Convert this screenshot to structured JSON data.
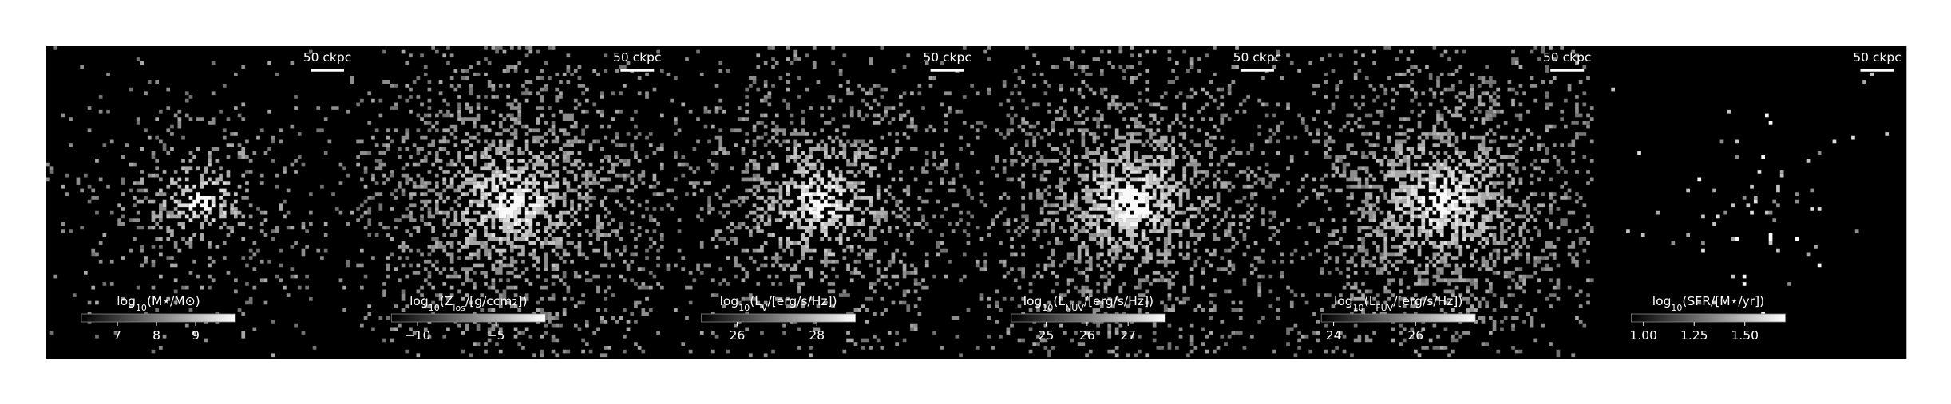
{
  "panels": [
    {
      "scale_label": "50 ckpc",
      "colorbar": {
        "label": [
          {
            "t": "log"
          },
          {
            "t": "10",
            "s": "sub"
          },
          {
            "t": "(M⋆/M⊙)"
          }
        ],
        "clim": [
          6.08,
          10.02
        ],
        "ticks": [
          7,
          8,
          9
        ]
      }
    },
    {
      "scale_label": "50 ckpc",
      "colorbar": {
        "label": [
          {
            "t": "log"
          },
          {
            "t": "10",
            "s": "sub"
          },
          {
            "t": "(Z"
          },
          {
            "t": "los",
            "s": "sub"
          },
          {
            "t": "/[g/ccm"
          },
          {
            "t": "2",
            "s": "sup"
          },
          {
            "t": "])"
          }
        ],
        "clim": [
          -11.67,
          -1.83
        ],
        "ticks": [
          {
            "value": -10,
            "label": "−10"
          },
          {
            "value": -5,
            "label": "−5"
          }
        ]
      }
    },
    {
      "scale_label": "50 ckpc",
      "colorbar": {
        "label": [
          {
            "t": "log"
          },
          {
            "t": "10",
            "s": "sub"
          },
          {
            "t": "(L"
          },
          {
            "t": "V",
            "s": "sub"
          },
          {
            "t": "/[erg/s/Hz])"
          }
        ],
        "clim": [
          25.1,
          28.97
        ],
        "ticks": [
          26,
          28
        ]
      }
    },
    {
      "scale_label": "50 ckpc",
      "colorbar": {
        "label": [
          {
            "t": "log"
          },
          {
            "t": "10",
            "s": "sub"
          },
          {
            "t": "(L"
          },
          {
            "t": "NUV",
            "s": "sub"
          },
          {
            "t": "/[erg/s/Hz])"
          }
        ],
        "clim": [
          24.15,
          27.91
        ],
        "ticks": [
          25,
          26,
          27
        ]
      }
    },
    {
      "scale_label": "50 ckpc",
      "colorbar": {
        "label": [
          {
            "t": "log"
          },
          {
            "t": "10",
            "s": "sub"
          },
          {
            "t": "(L"
          },
          {
            "t": "FUV",
            "s": "sub"
          },
          {
            "t": "/[erg/s/Hz])"
          }
        ],
        "clim": [
          23.7,
          27.46
        ],
        "ticks": [
          24,
          26
        ]
      }
    },
    {
      "scale_label": "50 ckpc",
      "colorbar": {
        "label": [
          {
            "t": "log"
          },
          {
            "t": "10",
            "s": "sub"
          },
          {
            "t": "(SFR/[M⋆/yr])"
          }
        ],
        "clim": [
          0.94,
          1.7
        ],
        "ticks": [
          {
            "value": 1,
            "label": "1.00"
          },
          {
            "value": 1.25,
            "label": "1.25"
          },
          {
            "value": 1.5,
            "label": "1.50"
          }
        ]
      }
    }
  ]
}
